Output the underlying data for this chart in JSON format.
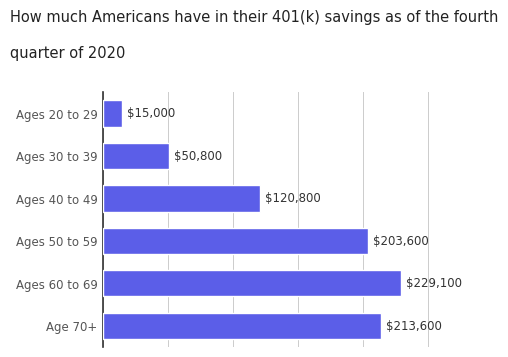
{
  "title_line1": "How much Americans have in their 401(k) savings as of the fourth",
  "title_line2": "quarter of 2020",
  "categories": [
    "Ages 20 to 29",
    "Ages 30 to 39",
    "Ages 40 to 49",
    "Ages 50 to 59",
    "Ages 60 to 69",
    "Age 70+"
  ],
  "values": [
    15000,
    50800,
    120800,
    203600,
    229100,
    213600
  ],
  "labels": [
    "$15,000",
    "$50,800",
    "$120,800",
    "$203,600",
    "$229,100",
    "$213,600"
  ],
  "bar_color": "#5B5EE8",
  "background_color": "#ffffff",
  "title_color": "#222222",
  "label_color": "#333333",
  "ytick_color": "#555555",
  "title_fontsize": 10.5,
  "label_fontsize": 8.5,
  "ytick_fontsize": 8.5,
  "xlim": [
    0,
    270000
  ],
  "grid_color": "#cccccc"
}
